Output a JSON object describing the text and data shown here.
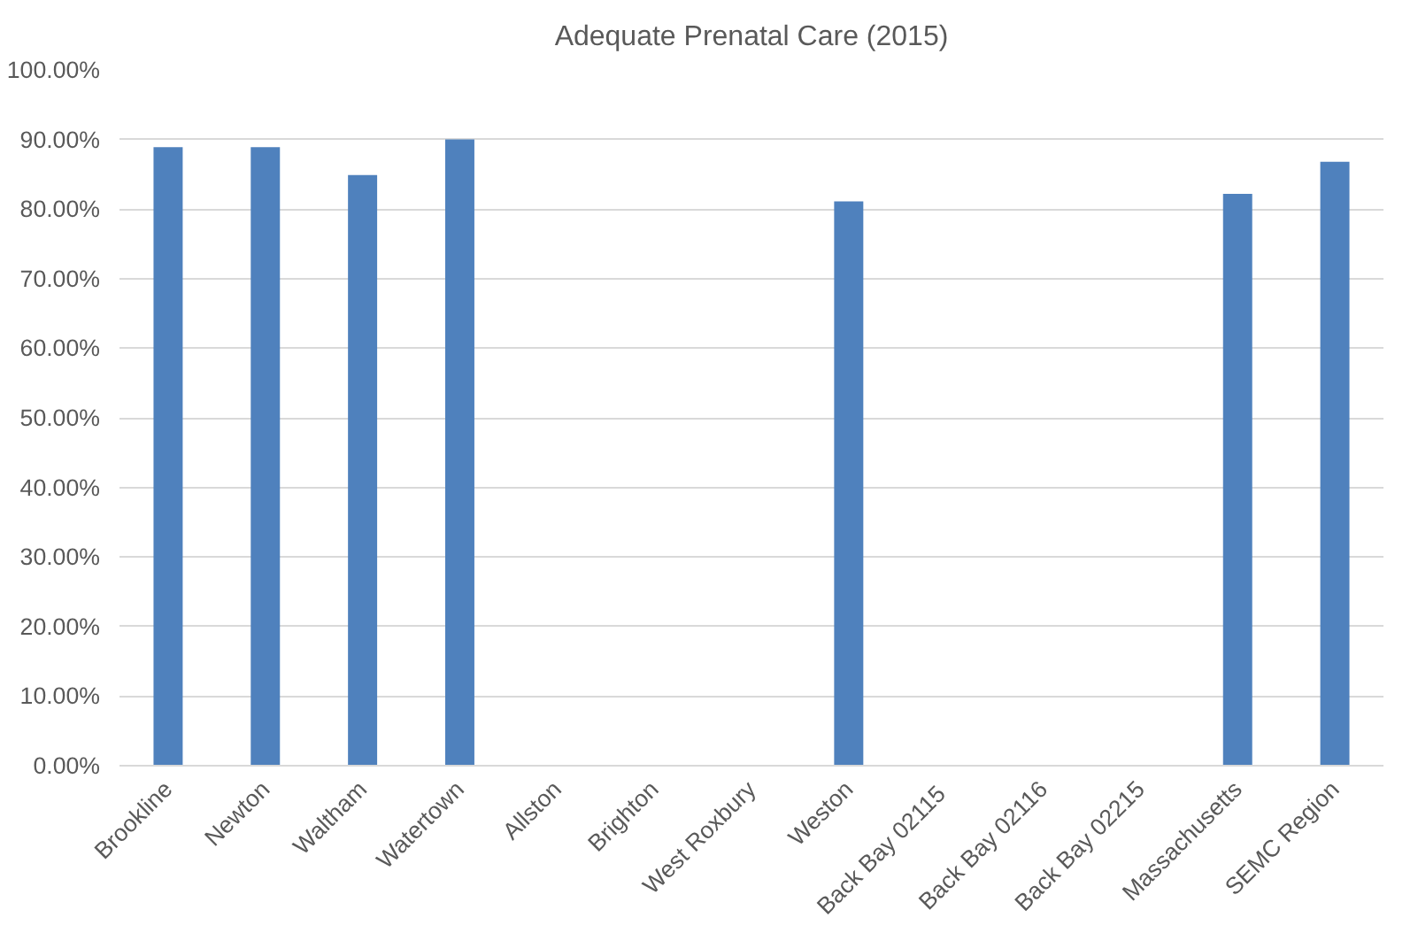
{
  "chart_data": {
    "type": "bar",
    "title": "Adequate Prenatal Care (2015)",
    "categories": [
      "Brookline",
      "Newton",
      "Waltham",
      "Watertown",
      "Allston",
      "Brighton",
      "West Roxbury",
      "Weston",
      "Back Bay  02115",
      "Back Bay 02116",
      "Back Bay 02215",
      "Massachusetts",
      "SEMC Region"
    ],
    "values": [
      88.9,
      88.9,
      84.9,
      90.0,
      null,
      null,
      null,
      81.1,
      null,
      null,
      null,
      82.2,
      86.8
    ],
    "color": "#4f81bd",
    "ylim": [
      0,
      100
    ],
    "yticks": [
      {
        "value": 0,
        "label": "0.00%"
      },
      {
        "value": 10,
        "label": "10.00%"
      },
      {
        "value": 20,
        "label": "20.00%"
      },
      {
        "value": 30,
        "label": "30.00%"
      },
      {
        "value": 40,
        "label": "40.00%"
      },
      {
        "value": 50,
        "label": "50.00%"
      },
      {
        "value": 60,
        "label": "60.00%"
      },
      {
        "value": 70,
        "label": "70.00%"
      },
      {
        "value": 80,
        "label": "80.00%"
      },
      {
        "value": 90,
        "label": "90.00%"
      },
      {
        "value": 100,
        "label": "100.00%"
      }
    ],
    "grid": "y"
  }
}
